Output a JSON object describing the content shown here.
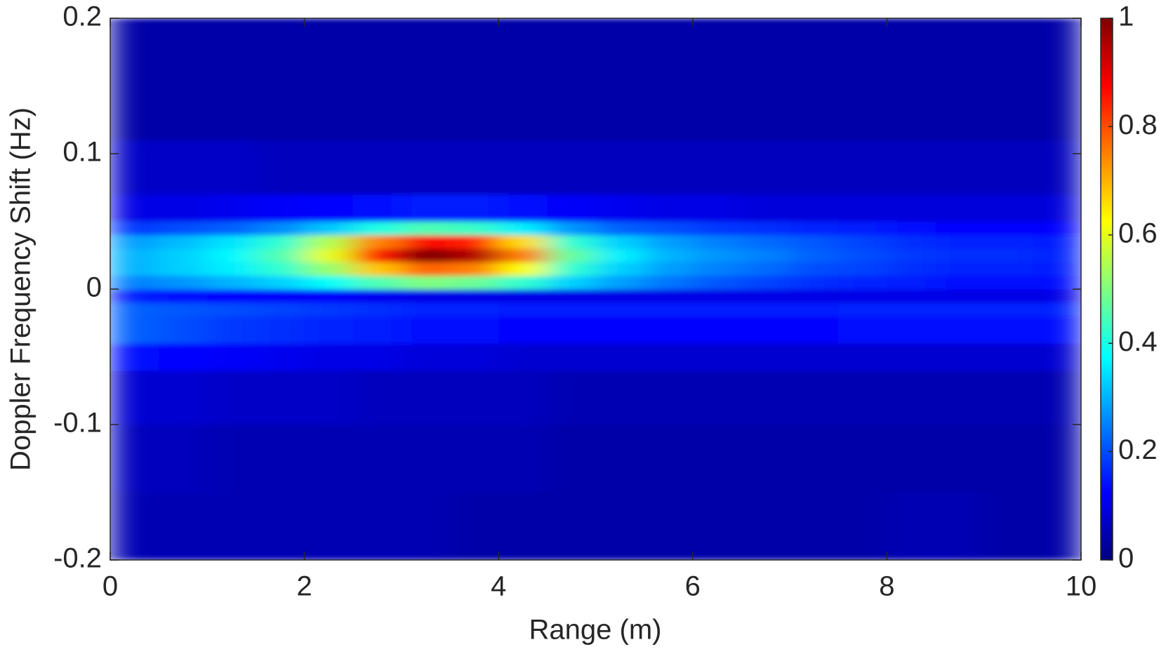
{
  "chart_data": {
    "type": "heatmap",
    "xlabel": "Range (m)",
    "ylabel": "Doppler Frequency Shift (Hz)",
    "colormap": "jet",
    "xbins": [
      0,
      0.5,
      1,
      1.5,
      2,
      2.5,
      3,
      3.5,
      4,
      4.5,
      5,
      5.5,
      6,
      6.5,
      7,
      7.5,
      8,
      8.5,
      9,
      9.5,
      10
    ],
    "ybins": [
      -0.2,
      -0.15,
      -0.1,
      -0.06,
      -0.04,
      -0.02,
      -0.01,
      0,
      0.01,
      0.02,
      0.03,
      0.04,
      0.05,
      0.07,
      0.11,
      0.2
    ],
    "z": [
      [
        0.05,
        0.05,
        0.05,
        0.05,
        0.05,
        0.05,
        0.05,
        0.04,
        0.04,
        0.04,
        0.04,
        0.04,
        0.04,
        0.04,
        0.04,
        0.04,
        0.05,
        0.05,
        0.04,
        0.04
      ],
      [
        0.06,
        0.06,
        0.05,
        0.05,
        0.05,
        0.05,
        0.05,
        0.05,
        0.05,
        0.04,
        0.04,
        0.04,
        0.04,
        0.04,
        0.04,
        0.04,
        0.04,
        0.04,
        0.04,
        0.04
      ],
      [
        0.08,
        0.08,
        0.07,
        0.07,
        0.07,
        0.06,
        0.06,
        0.06,
        0.06,
        0.05,
        0.05,
        0.05,
        0.05,
        0.05,
        0.05,
        0.05,
        0.05,
        0.05,
        0.05,
        0.05
      ],
      [
        0.14,
        0.13,
        0.12,
        0.11,
        0.1,
        0.1,
        0.09,
        0.09,
        0.08,
        0.08,
        0.08,
        0.08,
        0.08,
        0.08,
        0.08,
        0.08,
        0.08,
        0.08,
        0.08,
        0.08
      ],
      [
        0.22,
        0.2,
        0.18,
        0.17,
        0.16,
        0.15,
        0.14,
        0.14,
        0.13,
        0.13,
        0.13,
        0.13,
        0.13,
        0.13,
        0.13,
        0.14,
        0.14,
        0.14,
        0.14,
        0.14
      ],
      [
        0.22,
        0.21,
        0.2,
        0.19,
        0.18,
        0.17,
        0.16,
        0.16,
        0.15,
        0.15,
        0.15,
        0.15,
        0.15,
        0.15,
        0.15,
        0.16,
        0.16,
        0.16,
        0.16,
        0.16
      ],
      [
        0.15,
        0.14,
        0.13,
        0.12,
        0.12,
        0.11,
        0.1,
        0.1,
        0.1,
        0.1,
        0.1,
        0.1,
        0.1,
        0.1,
        0.1,
        0.1,
        0.1,
        0.1,
        0.1,
        0.1
      ],
      [
        0.25,
        0.27,
        0.3,
        0.33,
        0.38,
        0.45,
        0.5,
        0.48,
        0.42,
        0.33,
        0.28,
        0.24,
        0.21,
        0.19,
        0.17,
        0.16,
        0.15,
        0.14,
        0.14,
        0.14
      ],
      [
        0.3,
        0.33,
        0.36,
        0.42,
        0.52,
        0.68,
        0.78,
        0.75,
        0.62,
        0.42,
        0.33,
        0.28,
        0.25,
        0.23,
        0.2,
        0.19,
        0.17,
        0.16,
        0.16,
        0.15
      ],
      [
        0.3,
        0.33,
        0.37,
        0.45,
        0.6,
        0.85,
        1.0,
        0.95,
        0.75,
        0.47,
        0.36,
        0.3,
        0.27,
        0.25,
        0.22,
        0.2,
        0.18,
        0.17,
        0.17,
        0.16
      ],
      [
        0.28,
        0.31,
        0.35,
        0.42,
        0.55,
        0.75,
        0.88,
        0.84,
        0.66,
        0.42,
        0.33,
        0.28,
        0.25,
        0.23,
        0.21,
        0.19,
        0.17,
        0.16,
        0.16,
        0.15
      ],
      [
        0.18,
        0.2,
        0.22,
        0.26,
        0.32,
        0.4,
        0.45,
        0.43,
        0.36,
        0.27,
        0.22,
        0.2,
        0.18,
        0.17,
        0.16,
        0.15,
        0.14,
        0.13,
        0.13,
        0.13
      ],
      [
        0.1,
        0.1,
        0.11,
        0.12,
        0.13,
        0.14,
        0.15,
        0.15,
        0.14,
        0.12,
        0.11,
        0.1,
        0.1,
        0.09,
        0.09,
        0.09,
        0.09,
        0.09,
        0.09,
        0.09
      ],
      [
        0.07,
        0.07,
        0.07,
        0.06,
        0.06,
        0.06,
        0.06,
        0.06,
        0.06,
        0.06,
        0.06,
        0.06,
        0.06,
        0.06,
        0.06,
        0.06,
        0.06,
        0.06,
        0.06,
        0.06
      ],
      [
        0.04,
        0.04,
        0.04,
        0.04,
        0.04,
        0.04,
        0.04,
        0.04,
        0.04,
        0.04,
        0.04,
        0.04,
        0.04,
        0.04,
        0.04,
        0.04,
        0.04,
        0.04,
        0.04,
        0.04
      ]
    ],
    "xlim": [
      0,
      10
    ],
    "xticks": [
      0,
      2,
      4,
      6,
      8,
      10
    ],
    "ylim": [
      -0.2,
      0.2
    ],
    "yticks": [
      -0.2,
      -0.1,
      0,
      0.1,
      0.2
    ],
    "clim": [
      0,
      1
    ],
    "cticks": [
      0,
      0.2,
      0.4,
      0.6,
      0.8,
      1
    ]
  }
}
